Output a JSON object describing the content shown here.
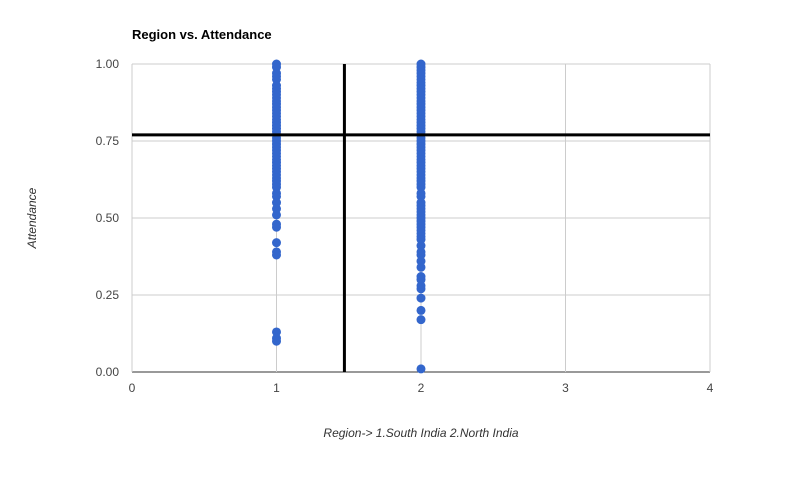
{
  "chart_data": {
    "type": "scatter",
    "title": "Region vs. Attendance",
    "xlabel": "Region-> 1.South India 2.North India",
    "ylabel": "Attendance",
    "xlim": [
      0,
      4
    ],
    "ylim": [
      0,
      1
    ],
    "x_ticks": [
      "0",
      "1",
      "2",
      "3",
      "4"
    ],
    "y_ticks": [
      "0.00",
      "0.25",
      "0.50",
      "0.75",
      "1.00"
    ],
    "grid": true,
    "legend": "none",
    "point_color": "#3366cc",
    "reference_lines": {
      "x": 1.47,
      "y": 0.77,
      "color": "#000000"
    },
    "series": [
      {
        "points": [
          [
            1,
            1.0
          ],
          [
            1,
            0.99
          ],
          [
            1,
            0.97
          ],
          [
            1,
            0.96
          ],
          [
            1,
            0.95
          ],
          [
            1,
            0.93
          ],
          [
            1,
            0.92
          ],
          [
            1,
            0.91
          ],
          [
            1,
            0.9
          ],
          [
            1,
            0.89
          ],
          [
            1,
            0.88
          ],
          [
            1,
            0.87
          ],
          [
            1,
            0.86
          ],
          [
            1,
            0.85
          ],
          [
            1,
            0.84
          ],
          [
            1,
            0.83
          ],
          [
            1,
            0.82
          ],
          [
            1,
            0.81
          ],
          [
            1,
            0.8
          ],
          [
            1,
            0.79
          ],
          [
            1,
            0.78
          ],
          [
            1,
            0.77
          ],
          [
            1,
            0.76
          ],
          [
            1,
            0.75
          ],
          [
            1,
            0.74
          ],
          [
            1,
            0.73
          ],
          [
            1,
            0.72
          ],
          [
            1,
            0.71
          ],
          [
            1,
            0.7
          ],
          [
            1,
            0.69
          ],
          [
            1,
            0.68
          ],
          [
            1,
            0.67
          ],
          [
            1,
            0.66
          ],
          [
            1,
            0.65
          ],
          [
            1,
            0.64
          ],
          [
            1,
            0.63
          ],
          [
            1,
            0.62
          ],
          [
            1,
            0.61
          ],
          [
            1,
            0.6
          ],
          [
            1,
            0.58
          ],
          [
            1,
            0.57
          ],
          [
            1,
            0.55
          ],
          [
            1,
            0.53
          ],
          [
            1,
            0.51
          ],
          [
            1,
            0.48
          ],
          [
            1,
            0.47
          ],
          [
            1,
            0.42
          ],
          [
            1,
            0.39
          ],
          [
            1,
            0.38
          ],
          [
            1,
            0.13
          ],
          [
            1,
            0.11
          ],
          [
            1,
            0.1
          ],
          [
            2,
            1.0
          ],
          [
            2,
            0.99
          ],
          [
            2,
            0.98
          ],
          [
            2,
            0.97
          ],
          [
            2,
            0.96
          ],
          [
            2,
            0.95
          ],
          [
            2,
            0.94
          ],
          [
            2,
            0.93
          ],
          [
            2,
            0.92
          ],
          [
            2,
            0.91
          ],
          [
            2,
            0.9
          ],
          [
            2,
            0.89
          ],
          [
            2,
            0.88
          ],
          [
            2,
            0.87
          ],
          [
            2,
            0.86
          ],
          [
            2,
            0.85
          ],
          [
            2,
            0.84
          ],
          [
            2,
            0.83
          ],
          [
            2,
            0.82
          ],
          [
            2,
            0.81
          ],
          [
            2,
            0.8
          ],
          [
            2,
            0.79
          ],
          [
            2,
            0.78
          ],
          [
            2,
            0.77
          ],
          [
            2,
            0.76
          ],
          [
            2,
            0.75
          ],
          [
            2,
            0.74
          ],
          [
            2,
            0.73
          ],
          [
            2,
            0.72
          ],
          [
            2,
            0.71
          ],
          [
            2,
            0.7
          ],
          [
            2,
            0.69
          ],
          [
            2,
            0.68
          ],
          [
            2,
            0.67
          ],
          [
            2,
            0.66
          ],
          [
            2,
            0.65
          ],
          [
            2,
            0.64
          ],
          [
            2,
            0.63
          ],
          [
            2,
            0.62
          ],
          [
            2,
            0.61
          ],
          [
            2,
            0.6
          ],
          [
            2,
            0.58
          ],
          [
            2,
            0.57
          ],
          [
            2,
            0.55
          ],
          [
            2,
            0.54
          ],
          [
            2,
            0.53
          ],
          [
            2,
            0.52
          ],
          [
            2,
            0.51
          ],
          [
            2,
            0.5
          ],
          [
            2,
            0.49
          ],
          [
            2,
            0.48
          ],
          [
            2,
            0.47
          ],
          [
            2,
            0.46
          ],
          [
            2,
            0.45
          ],
          [
            2,
            0.44
          ],
          [
            2,
            0.43
          ],
          [
            2,
            0.41
          ],
          [
            2,
            0.39
          ],
          [
            2,
            0.38
          ],
          [
            2,
            0.36
          ],
          [
            2,
            0.34
          ],
          [
            2,
            0.31
          ],
          [
            2,
            0.3
          ],
          [
            2,
            0.28
          ],
          [
            2,
            0.27
          ],
          [
            2,
            0.24
          ],
          [
            2,
            0.2
          ],
          [
            2,
            0.17
          ],
          [
            2,
            0.01
          ]
        ]
      }
    ]
  }
}
